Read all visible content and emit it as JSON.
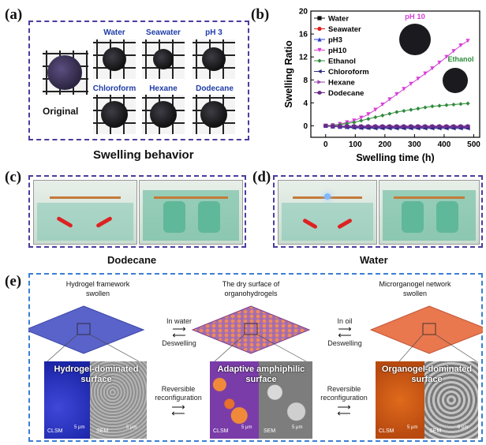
{
  "panel_a": {
    "letter": "(a)",
    "original_label": "Original",
    "solvents_top": [
      "Water",
      "Seawater",
      "pH 3"
    ],
    "solvents_bottom": [
      "Chloroform",
      "Hexane",
      "Dodecane"
    ],
    "caption": "Swelling behavior"
  },
  "panel_b": {
    "letter": "(b)"
  },
  "chart_data": {
    "type": "line",
    "xlabel": "Swelling time (h)",
    "ylabel": "Swelling Ratio",
    "xlim": [
      -50,
      520
    ],
    "ylim": [
      -2,
      20
    ],
    "xticks": [
      "0",
      "100",
      "200",
      "300",
      "400",
      "500"
    ],
    "yticks": [
      "0",
      "4",
      "8",
      "12",
      "16",
      "20"
    ],
    "legend_position": "top-left",
    "annotations": [
      "pH 10",
      "Ethanol"
    ],
    "x": [
      0,
      24,
      48,
      72,
      96,
      120,
      144,
      168,
      192,
      216,
      240,
      264,
      288,
      312,
      336,
      360,
      384,
      408,
      432,
      456,
      480
    ],
    "series": [
      {
        "name": "Water",
        "color": "#111111",
        "marker": "square",
        "values": [
          0,
          -0.1,
          -0.1,
          -0.15,
          -0.15,
          -0.2,
          -0.2,
          -0.2,
          -0.2,
          -0.2,
          -0.2,
          -0.2,
          -0.2,
          -0.2,
          -0.2,
          -0.2,
          -0.2,
          -0.2,
          -0.2,
          -0.2,
          -0.2
        ]
      },
      {
        "name": "Seawater",
        "color": "#e02020",
        "marker": "circle",
        "values": [
          0,
          -0.1,
          -0.2,
          -0.2,
          -0.25,
          -0.3,
          -0.3,
          -0.3,
          -0.3,
          -0.3,
          -0.3,
          -0.3,
          -0.3,
          -0.3,
          -0.3,
          -0.3,
          -0.3,
          -0.3,
          -0.3,
          -0.3,
          -0.3
        ]
      },
      {
        "name": "pH3",
        "color": "#2a3fd6",
        "marker": "triangle",
        "values": [
          0,
          -0.1,
          -0.15,
          -0.2,
          -0.2,
          -0.25,
          -0.25,
          -0.25,
          -0.25,
          -0.25,
          -0.25,
          -0.25,
          -0.25,
          -0.25,
          -0.25,
          -0.25,
          -0.25,
          -0.25,
          -0.25,
          -0.25,
          -0.25
        ]
      },
      {
        "name": "pH10",
        "color": "#d63fd6",
        "marker": "triangle-down",
        "values": [
          0,
          0.1,
          0.3,
          0.6,
          0.9,
          1.4,
          2.0,
          2.8,
          3.7,
          4.6,
          5.5,
          6.4,
          7.3,
          8.2,
          9.1,
          10.0,
          11.0,
          12.0,
          13.0,
          14.0,
          14.8
        ]
      },
      {
        "name": "Ethanol",
        "color": "#2e8b3a",
        "marker": "diamond",
        "values": [
          0,
          0.1,
          0.2,
          0.4,
          0.6,
          0.9,
          1.2,
          1.5,
          1.8,
          2.1,
          2.4,
          2.6,
          2.8,
          3.0,
          3.2,
          3.4,
          3.5,
          3.6,
          3.7,
          3.8,
          3.9
        ]
      },
      {
        "name": "Chloroform",
        "color": "#2a2a80",
        "marker": "triangle-left",
        "values": [
          0,
          -0.1,
          -0.2,
          -0.3,
          -0.35,
          -0.4,
          -0.4,
          -0.45,
          -0.45,
          -0.45,
          -0.45,
          -0.45,
          -0.45,
          -0.45,
          -0.45,
          -0.45,
          -0.45,
          -0.45,
          -0.45,
          -0.45,
          -0.45
        ]
      },
      {
        "name": "Hexane",
        "color": "#9b3fb0",
        "marker": "triangle-right",
        "values": [
          0,
          -0.05,
          -0.1,
          -0.1,
          -0.1,
          -0.1,
          -0.1,
          -0.1,
          -0.1,
          -0.1,
          -0.1,
          -0.1,
          -0.1,
          -0.1,
          -0.1,
          -0.1,
          -0.1,
          -0.1,
          -0.1,
          -0.1,
          -0.1
        ]
      },
      {
        "name": "Dodecane",
        "color": "#6a2a8a",
        "marker": "hexagon",
        "values": [
          0,
          -0.05,
          -0.05,
          -0.05,
          -0.05,
          -0.05,
          -0.05,
          -0.05,
          -0.05,
          -0.05,
          -0.05,
          -0.05,
          -0.05,
          -0.05,
          -0.05,
          -0.05,
          -0.05,
          -0.05,
          -0.05,
          -0.05,
          -0.05
        ]
      }
    ]
  },
  "panel_c": {
    "letter": "(c)",
    "caption": "Dodecane"
  },
  "panel_d": {
    "letter": "(d)",
    "caption": "Water"
  },
  "panel_e": {
    "letter": "(e)",
    "col1_title": [
      "Hydrogel framework",
      "swollen"
    ],
    "col2_title": [
      "The dry surface  of",
      "organohydrogels"
    ],
    "col3_title": [
      "Microrganogel network",
      "swollen"
    ],
    "arrow1_top": "In water",
    "arrow1_bottom": "Deswelling",
    "arrow2_top": "In oil",
    "arrow2_bottom": "Deswelling",
    "reconf_left": [
      "Reversible",
      "reconfiguration"
    ],
    "reconf_right": [
      "Reversible",
      "reconfiguration"
    ],
    "img1_label": [
      "Hydrogel-dominated",
      "surface"
    ],
    "img2_label": [
      "Adaptive amphiphilic",
      "surface"
    ],
    "img3_label": [
      "Organogel-dominated",
      "surface"
    ],
    "clsm": "CLSM",
    "sem": "SEM",
    "scale": "5 μm"
  }
}
